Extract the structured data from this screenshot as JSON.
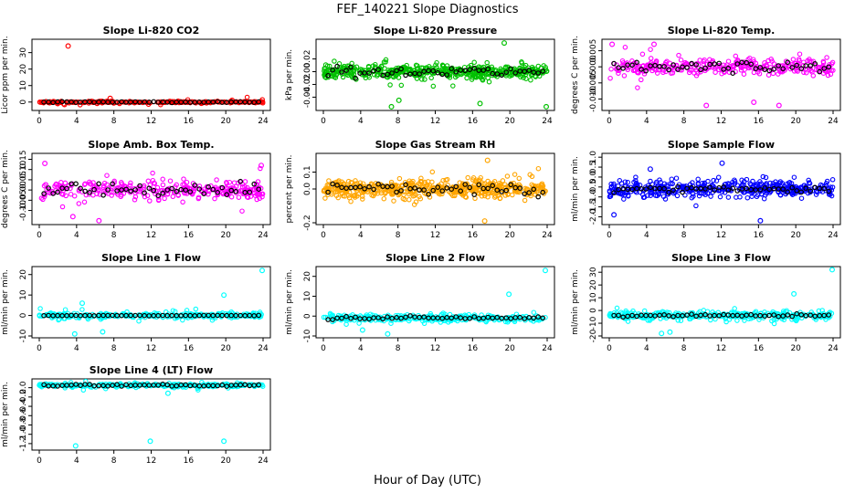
{
  "figure": {
    "title": "FEF_140221  Slope Diagnostics",
    "xlabel": "Hour of Day (UTC)"
  },
  "chart_data": [
    {
      "type": "scatter",
      "title": "Slope Li-820 CO2",
      "ylabel": "Licor ppm per min.",
      "color": "#ff0000",
      "xlim": [
        0,
        24
      ],
      "xticks": [
        0,
        4,
        8,
        12,
        16,
        20,
        24
      ],
      "ylim": [
        -4,
        37
      ],
      "yticks": [
        0,
        10,
        20,
        30
      ],
      "base": 0,
      "spread": 0.6,
      "burst": 2.5,
      "black_spread": 0.4,
      "point_count": 260,
      "outliers": [
        [
          3.1,
          34
        ],
        [
          2.7,
          -1.5
        ],
        [
          7.6,
          2.2
        ],
        [
          6.2,
          -0.8
        ]
      ]
    },
    {
      "type": "scatter",
      "title": "Slope Li-820 Pressure",
      "ylabel": "kPa per min.",
      "color": "#00c000",
      "xlim": [
        0,
        24
      ],
      "xticks": [
        0,
        4,
        8,
        12,
        16,
        20,
        24
      ],
      "ylim": [
        -0.058,
        0.048
      ],
      "yticks": [
        -0.04,
        -0.02,
        0.0,
        0.02
      ],
      "base": 0,
      "spread": 0.012,
      "burst": 0.025,
      "black_spread": 0.01,
      "point_count": 480,
      "outliers": [
        [
          7.3,
          -0.055
        ],
        [
          23.9,
          -0.055
        ],
        [
          19.4,
          0.045
        ],
        [
          16.8,
          -0.05
        ],
        [
          8.1,
          -0.045
        ]
      ]
    },
    {
      "type": "scatter",
      "title": "Slope Li-820 Temp.",
      "ylabel": "degrees C per min.",
      "color": "#ff00ff",
      "xlim": [
        0,
        24
      ],
      "xticks": [
        0,
        4,
        8,
        12,
        16,
        20,
        24
      ],
      "ylim": [
        -0.013,
        0.008
      ],
      "yticks": [
        -0.01,
        -0.005,
        0.0,
        0.005
      ],
      "base": 0,
      "spread": 0.003,
      "burst": 0.006,
      "black_spread": 0.002,
      "point_count": 300,
      "outliers": [
        [
          0.3,
          0.007
        ],
        [
          4.8,
          0.007
        ],
        [
          10.4,
          -0.012
        ],
        [
          15.5,
          -0.011
        ],
        [
          18.2,
          -0.012
        ]
      ]
    },
    {
      "type": "scatter",
      "title": "Slope Amb. Box Temp.",
      "ylabel": "degrees C per min.",
      "color": "#ff00ff",
      "xlim": [
        0,
        24
      ],
      "xticks": [
        0,
        4,
        8,
        12,
        16,
        20,
        24
      ],
      "ylim": [
        -0.16,
        0.17
      ],
      "yticks": [
        -0.1,
        -0.05,
        0.0,
        0.05,
        0.1,
        0.15
      ],
      "base": 0,
      "spread": 0.05,
      "burst": 0.1,
      "black_spread": 0.04,
      "point_count": 300,
      "outliers": [
        [
          6.4,
          -0.15
        ],
        [
          0.6,
          0.13
        ],
        [
          3.6,
          -0.13
        ],
        [
          23.8,
          0.12
        ]
      ]
    },
    {
      "type": "scatter",
      "title": "Slope Gas Stream RH",
      "ylabel": "percent per min.",
      "color": "#ffa500",
      "xlim": [
        0,
        24
      ],
      "xticks": [
        0,
        4,
        8,
        12,
        16,
        20,
        24
      ],
      "ylim": [
        -0.2,
        0.2
      ],
      "yticks": [
        -0.2,
        0.0,
        0.1
      ],
      "base": 0,
      "spread": 0.06,
      "burst": 0.13,
      "black_spread": 0.05,
      "point_count": 520,
      "outliers": [
        [
          17.3,
          -0.19
        ],
        [
          17.6,
          0.17
        ]
      ]
    },
    {
      "type": "scatter",
      "title": "Slope Sample Flow",
      "ylabel": "ml/min per min.",
      "color": "#0000ff",
      "xlim": [
        0,
        24
      ],
      "xticks": [
        0,
        4,
        8,
        12,
        16,
        20,
        24
      ],
      "ylim": [
        -2.3,
        1.1
      ],
      "yticks": [
        -2.0,
        -1.5,
        -1.0,
        -0.5,
        0.0,
        0.5,
        1.0
      ],
      "base": -0.6,
      "spread": 0.5,
      "burst": 0.8,
      "black_spread": 0.2,
      "point_count": 420,
      "outliers": [
        [
          16.2,
          -2.2
        ],
        [
          0.5,
          -1.9
        ],
        [
          4.4,
          0.4
        ],
        [
          12.1,
          0.7
        ]
      ]
    },
    {
      "type": "scatter",
      "title": "Slope Line 1 Flow",
      "ylabel": "ml/min per min.",
      "color": "#00ffff",
      "xlim": [
        0,
        24
      ],
      "xticks": [
        0,
        4,
        8,
        12,
        16,
        20,
        24
      ],
      "ylim": [
        -10,
        23
      ],
      "yticks": [
        -10,
        0,
        10,
        20
      ],
      "base": 0,
      "spread": 1.5,
      "burst": 3.5,
      "black_spread": 0.2,
      "point_count": 300,
      "outliers": [
        [
          23.9,
          22
        ],
        [
          19.8,
          10
        ],
        [
          3.8,
          -9
        ],
        [
          6.8,
          -8
        ],
        [
          4.6,
          6
        ]
      ]
    },
    {
      "type": "scatter",
      "title": "Slope Line 2 Flow",
      "ylabel": "ml/min per min.",
      "color": "#00ffff",
      "xlim": [
        0,
        24
      ],
      "xticks": [
        0,
        4,
        8,
        12,
        16,
        20,
        24
      ],
      "ylim": [
        -10,
        24
      ],
      "yticks": [
        -10,
        0,
        10,
        20
      ],
      "base": -1,
      "spread": 2,
      "burst": 4,
      "black_spread": 1.2,
      "point_count": 300,
      "outliers": [
        [
          23.8,
          23
        ],
        [
          19.9,
          11
        ],
        [
          6.9,
          -9
        ],
        [
          4.2,
          -7
        ]
      ]
    },
    {
      "type": "scatter",
      "title": "Slope Line 3 Flow",
      "ylabel": "ml/min per min.",
      "color": "#00ffff",
      "xlim": [
        0,
        24
      ],
      "xticks": [
        0,
        4,
        8,
        12,
        16,
        20,
        24
      ],
      "ylim": [
        -20,
        33
      ],
      "yticks": [
        -20,
        -10,
        0,
        10,
        20,
        30
      ],
      "base": -4,
      "spread": 4,
      "burst": 7,
      "black_spread": 1.5,
      "point_count": 320,
      "outliers": [
        [
          23.9,
          32
        ],
        [
          19.8,
          13
        ],
        [
          5.6,
          -18
        ],
        [
          6.5,
          -17
        ]
      ]
    },
    {
      "type": "scatter",
      "title": "Slope Line 4 (LT) Flow",
      "ylabel": "ml/min per min.",
      "color": "#00ffff",
      "xlim": [
        0,
        24
      ],
      "xticks": [
        0,
        4,
        8,
        12,
        16,
        20,
        24
      ],
      "ylim": [
        -1.3,
        0.15
      ],
      "yticks": [
        -1.2,
        -1.0,
        -0.8,
        -0.6,
        -0.4,
        -0.2,
        0.0
      ],
      "base": 0.05,
      "spread": 0.04,
      "burst": 0.1,
      "black_spread": 0.03,
      "point_count": 300,
      "outliers": [
        [
          3.9,
          -1.25
        ],
        [
          11.9,
          -1.15
        ],
        [
          19.8,
          -1.15
        ],
        [
          13.8,
          -0.12
        ]
      ]
    }
  ]
}
